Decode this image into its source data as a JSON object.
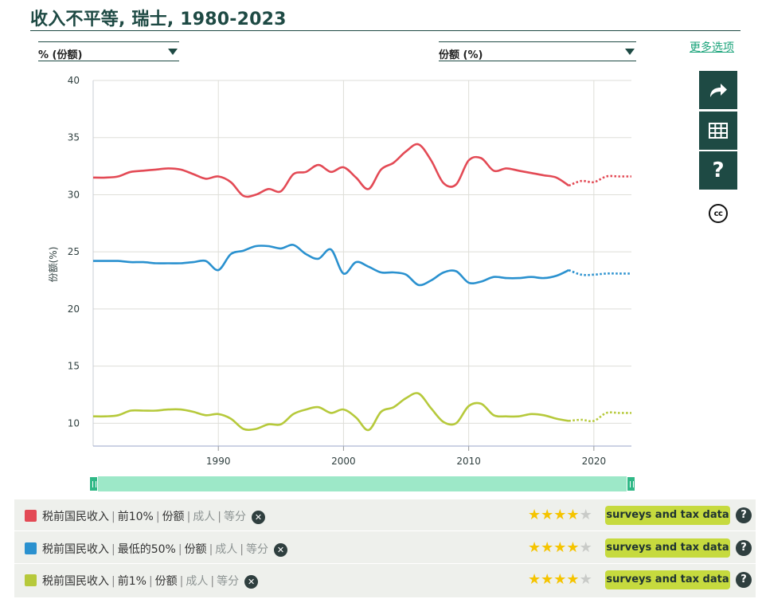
{
  "header": {
    "title": "收入不平等, 瑞士, 1980-2023",
    "left_selector": "% (份额)",
    "right_selector": "份额 (%)",
    "more_options": "更多选项"
  },
  "side_toolbar": {
    "icons": [
      "share-icon",
      "table-icon",
      "help-icon",
      "cc-license-icon"
    ],
    "help_label": "?",
    "cc_label": "cc"
  },
  "chart_data": {
    "type": "line",
    "title": "收入不平等, 瑞士, 1980-2023",
    "ylabel": "份额(%)",
    "xlabel": "",
    "xlim": [
      1980,
      2023
    ],
    "ylim": [
      8,
      40
    ],
    "x_ticks": [
      1990,
      2000,
      2010,
      2020
    ],
    "y_ticks": [
      10,
      15,
      20,
      25,
      30,
      35,
      40
    ],
    "grid": true,
    "dotted_from": 2018,
    "x": [
      1980,
      1981,
      1982,
      1983,
      1984,
      1985,
      1986,
      1987,
      1988,
      1989,
      1990,
      1991,
      1992,
      1993,
      1994,
      1995,
      1996,
      1997,
      1998,
      1999,
      2000,
      2001,
      2002,
      2003,
      2004,
      2005,
      2006,
      2007,
      2008,
      2009,
      2010,
      2011,
      2012,
      2013,
      2014,
      2015,
      2016,
      2017,
      2018,
      2019,
      2020,
      2021,
      2022,
      2023
    ],
    "series": [
      {
        "name": "税前国民收入 | 前10% | 份额 | 成人 | 等分",
        "color": "#e34a55",
        "values": [
          31.5,
          31.5,
          31.6,
          32.0,
          32.1,
          32.2,
          32.3,
          32.2,
          31.8,
          31.4,
          31.6,
          31.1,
          29.9,
          30.0,
          30.5,
          30.3,
          31.8,
          32.0,
          32.6,
          32.0,
          32.4,
          31.5,
          30.5,
          32.2,
          32.8,
          33.8,
          34.4,
          33.0,
          31.0,
          30.9,
          33.0,
          33.2,
          32.1,
          32.3,
          32.1,
          31.9,
          31.7,
          31.5,
          30.8,
          31.2,
          31.1,
          31.6,
          31.6,
          31.6
        ]
      },
      {
        "name": "税前国民收入 | 最低的50% | 份额 | 成人 | 等分",
        "color": "#2a91cf",
        "values": [
          24.2,
          24.2,
          24.2,
          24.1,
          24.1,
          24.0,
          24.0,
          24.0,
          24.1,
          24.2,
          23.4,
          24.8,
          25.1,
          25.5,
          25.5,
          25.3,
          25.6,
          24.8,
          24.4,
          25.2,
          23.1,
          24.1,
          23.7,
          23.2,
          23.2,
          23.0,
          22.1,
          22.5,
          23.2,
          23.3,
          22.3,
          22.4,
          22.8,
          22.7,
          22.7,
          22.8,
          22.7,
          22.9,
          23.4,
          23.0,
          23.0,
          23.1,
          23.1,
          23.1
        ]
      },
      {
        "name": "税前国民收入 | 前1% | 份额 | 成人 | 等分",
        "color": "#b6c93b",
        "values": [
          10.6,
          10.6,
          10.7,
          11.1,
          11.1,
          11.1,
          11.2,
          11.2,
          11.0,
          10.7,
          10.8,
          10.4,
          9.5,
          9.5,
          9.9,
          9.9,
          10.8,
          11.2,
          11.4,
          10.9,
          11.2,
          10.5,
          9.4,
          11.0,
          11.4,
          12.2,
          12.6,
          11.3,
          10.1,
          10.0,
          11.5,
          11.7,
          10.7,
          10.6,
          10.6,
          10.8,
          10.7,
          10.4,
          10.2,
          10.3,
          10.2,
          10.9,
          10.9,
          10.9
        ]
      }
    ]
  },
  "slider": {
    "range": [
      1980,
      2023
    ]
  },
  "legend": {
    "rows": [
      {
        "color": "#e34a55",
        "parts": [
          "税前国民收入",
          "前10%",
          "份额"
        ],
        "muted": [
          "成人",
          "等分"
        ],
        "remove": "✕",
        "stars": 4,
        "source": "surveys and tax data",
        "help": "?"
      },
      {
        "color": "#2a91cf",
        "parts": [
          "税前国民收入",
          "最低的50%",
          "份额"
        ],
        "muted": [
          "成人",
          "等分"
        ],
        "remove": "✕",
        "stars": 4,
        "source": "surveys and tax data",
        "help": "?"
      },
      {
        "color": "#b6c93b",
        "parts": [
          "税前国民收入",
          "前1%",
          "份额"
        ],
        "muted": [
          "成人",
          "等分"
        ],
        "remove": "✕",
        "stars": 4,
        "source": "surveys and tax data",
        "help": "?"
      }
    ]
  },
  "colors": {
    "brand_dark": "#1e4a44",
    "slider_track": "#9de8c8",
    "slider_handle": "#2fb886",
    "source_badge": "#c6da3e",
    "star": "#f5c400"
  }
}
